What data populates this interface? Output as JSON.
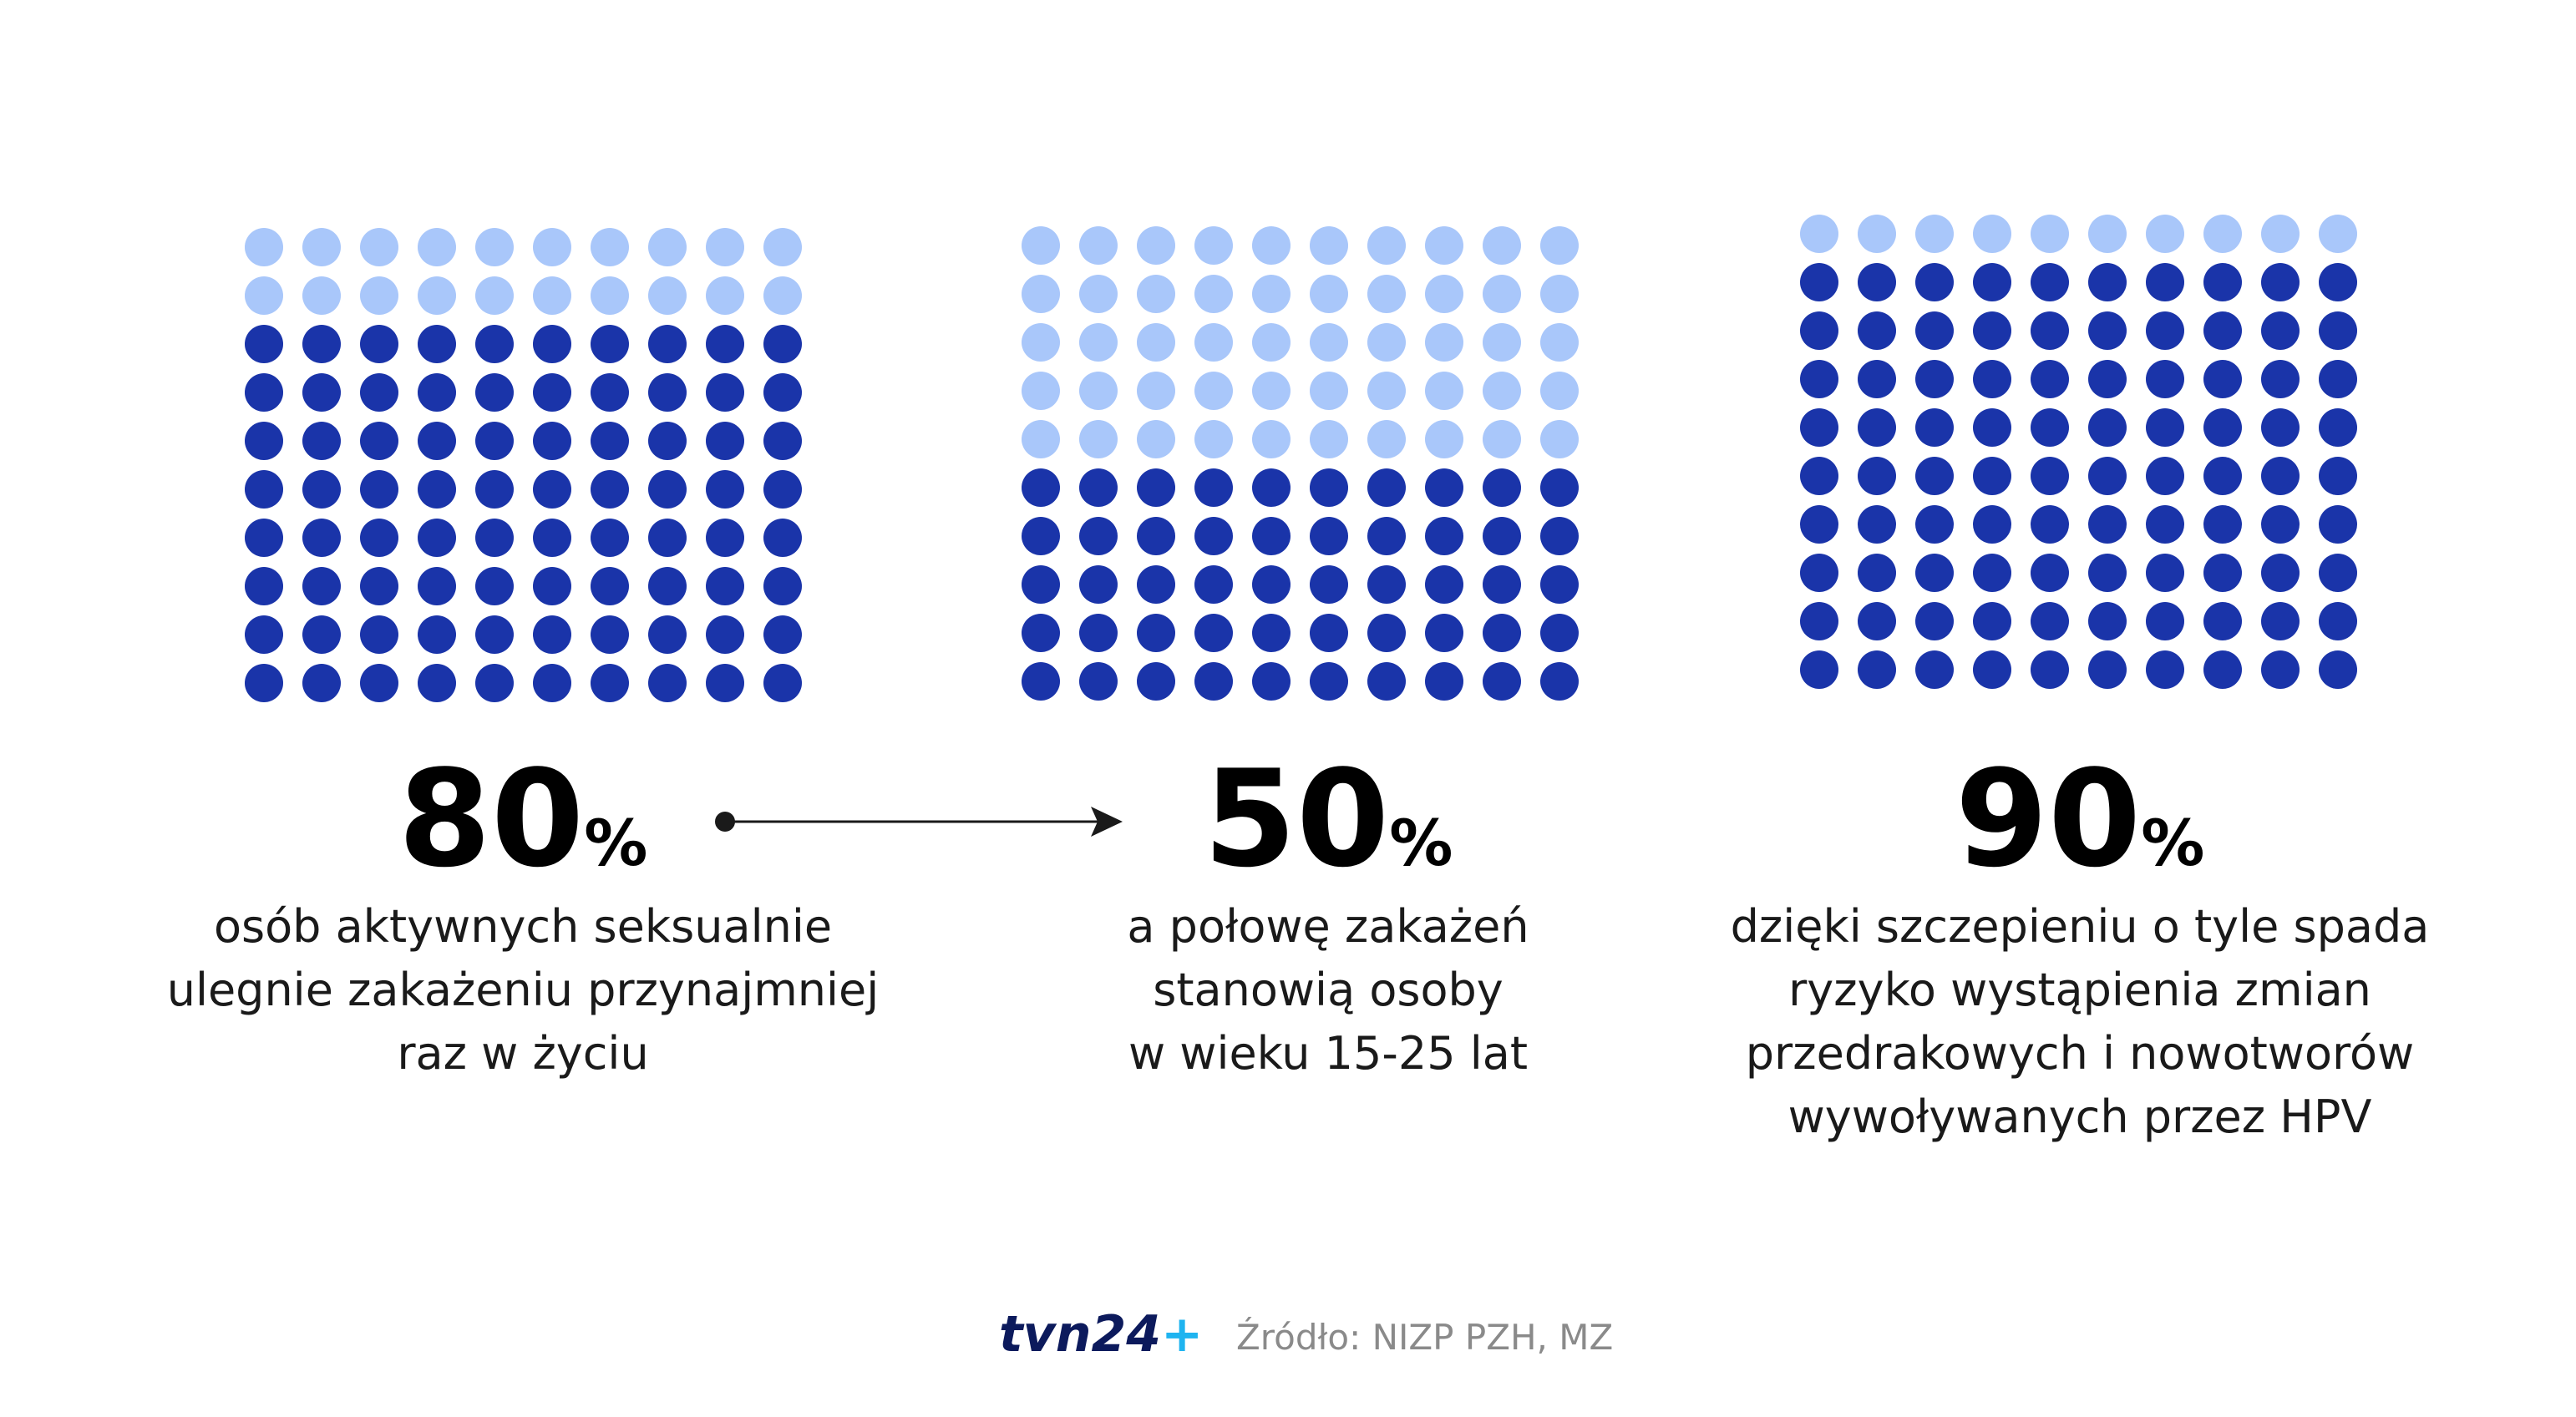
{
  "chart_data": [
    {
      "type": "waffle",
      "value": 80,
      "unit": "%",
      "color": "#1a34a9",
      "rest_color": "#a9c7fa",
      "caption": [
        "osób aktywnych seksualnie",
        "ulegnie zakażeniu przynajmniej",
        "raz w życiu"
      ]
    },
    {
      "type": "waffle",
      "value": 50,
      "unit": "%",
      "color": "#1a34a9",
      "rest_color": "#a9c7fa",
      "caption": [
        "a połowę zakażeń",
        "stanowią osoby",
        "w wieku 15-25 lat"
      ]
    },
    {
      "type": "waffle",
      "value": 90,
      "unit": "%",
      "color": "#1a34a9",
      "rest_color": "#a9c7fa",
      "caption": [
        "dzięki szczepieniu o tyle spada",
        "ryzyko wystąpienia zmian",
        "przedrakowych i nowotworów",
        "wywoływanych przez HPV"
      ]
    }
  ],
  "footer": {
    "logo": "tvn24",
    "logo_plus": "+",
    "source": "Źródło: NIZP PZH, MZ"
  }
}
